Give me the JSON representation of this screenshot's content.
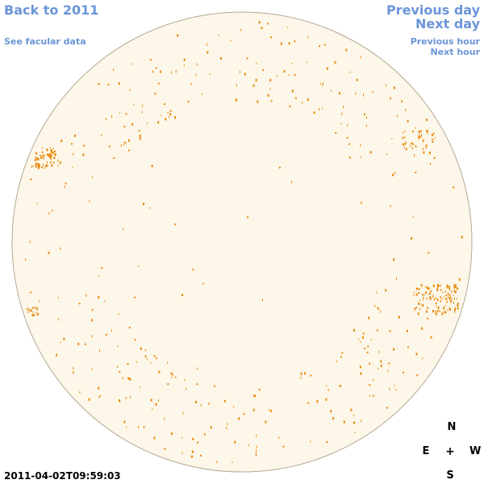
{
  "colors": {
    "link": "#6b95d8",
    "disk_fill": "#fdf7e9",
    "disk_stroke": "#b3a993",
    "facula": "#e8890a"
  },
  "nav": {
    "back": "Back to 2011",
    "see_facular": "See facular data",
    "previous_day": "Previous day",
    "next_day": "Next day",
    "previous_hour": "Previous hour",
    "next_hour": "Next hour"
  },
  "compass": {
    "north": "N",
    "east": "E",
    "west": "W",
    "south": "S",
    "center": "+"
  },
  "timestamp": "2011-04-02T09:59:03",
  "icons": {
    "solar_disk": "solar-disk-icon",
    "facular_regions": "facula-marker-icon"
  }
}
